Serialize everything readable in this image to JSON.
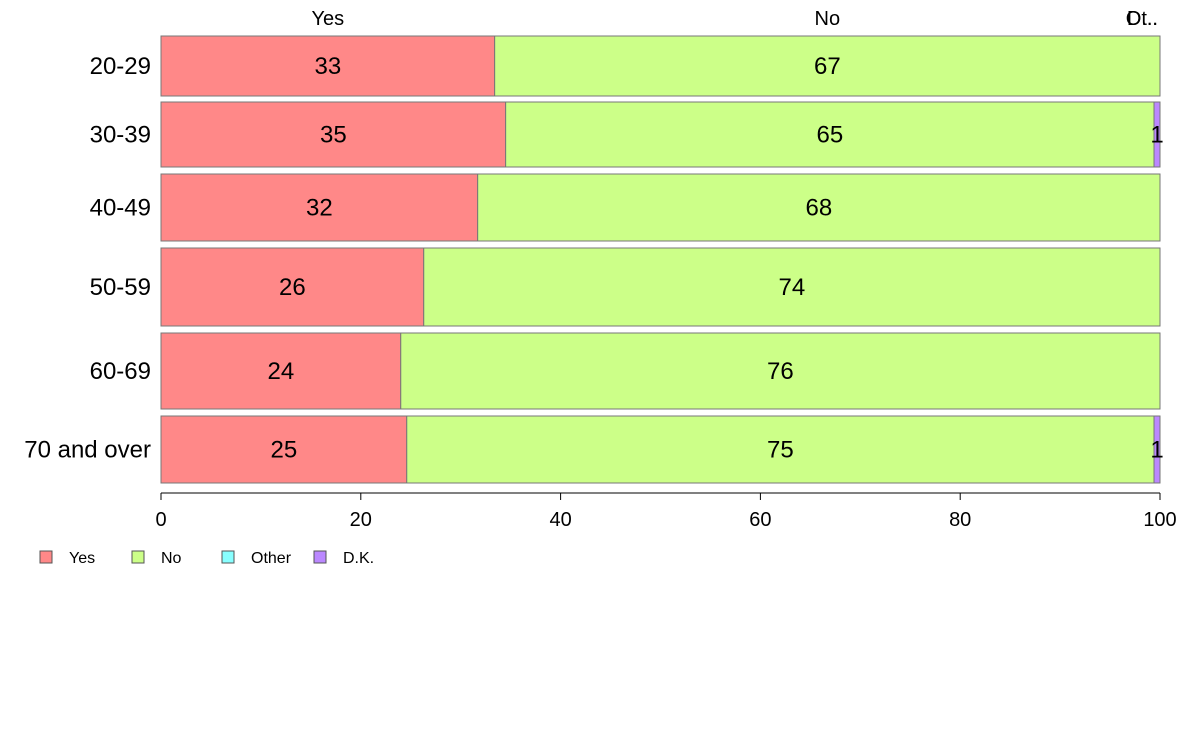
{
  "chart_data": {
    "type": "bar",
    "orientation": "horizontal",
    "stacked": true,
    "categories": [
      "20-29",
      "30-39",
      "40-49",
      "50-59",
      "60-69",
      "70 and over"
    ],
    "series": [
      {
        "name": "Yes",
        "color": "#FF8888",
        "values": [
          33.4,
          34.5,
          31.7,
          26.3,
          24.0,
          24.6
        ],
        "labels": [
          "33",
          "35",
          "32",
          "26",
          "24",
          "25"
        ]
      },
      {
        "name": "No",
        "color": "#CCFF88",
        "values": [
          66.6,
          64.9,
          68.3,
          73.7,
          76.0,
          74.8
        ],
        "labels": [
          "67",
          "65",
          "68",
          "74",
          "76",
          "75"
        ]
      },
      {
        "name": "Other",
        "color": "#88FFFF",
        "values": [
          0,
          0,
          0,
          0,
          0,
          0
        ],
        "labels": [
          "",
          "",
          "",
          "",
          "",
          ""
        ]
      },
      {
        "name": "D.K.",
        "color": "#BB88FF",
        "values": [
          0,
          0.6,
          0,
          0,
          0,
          0.6
        ],
        "labels": [
          "",
          "1",
          "",
          "",
          "",
          "1"
        ]
      }
    ],
    "column_headers": [
      "Yes",
      "No",
      "Ot..",
      "D..."
    ],
    "xlim": [
      0,
      100
    ],
    "xticks": [
      "0",
      "20",
      "40",
      "60",
      "80",
      "100"
    ],
    "grid": false,
    "legend_position": "bottom-left"
  }
}
